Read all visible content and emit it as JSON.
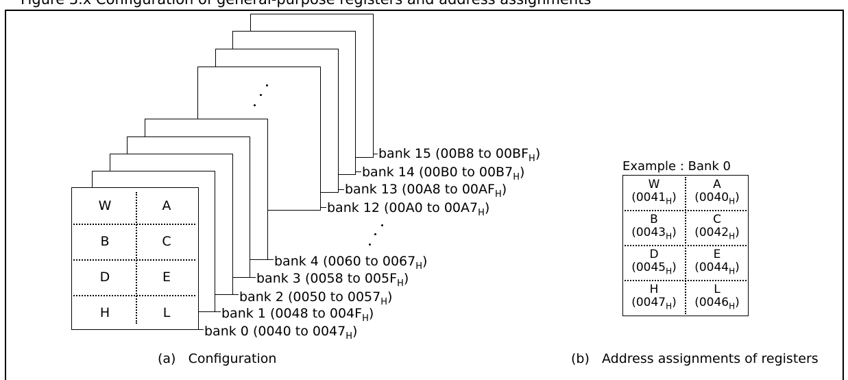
{
  "top_caption": "Figure 3.x  Configuration of general-purpose registers and address assignments",
  "banks_front": [
    {
      "label": "bank 0",
      "range": "(0040 to 0047",
      "suffix": "H",
      "close": ")"
    },
    {
      "label": "bank 1",
      "range": "(0048 to 004F",
      "suffix": "H",
      "close": ")"
    },
    {
      "label": "bank 2",
      "range": "(0050 to 0057",
      "suffix": "H",
      "close": ")"
    },
    {
      "label": "bank 3",
      "range": "(0058 to 005F",
      "suffix": "H",
      "close": ")"
    },
    {
      "label": "bank 4",
      "range": "(0060 to 0067",
      "suffix": "H",
      "close": ")"
    }
  ],
  "banks_back": [
    {
      "label": "bank 12",
      "range": "(00A0 to 00A7",
      "suffix": "H",
      "close": ")"
    },
    {
      "label": "bank 13",
      "range": "(00A8 to 00AF",
      "suffix": "H",
      "close": ")"
    },
    {
      "label": "bank 14",
      "range": "(00B0 to 00B7",
      "suffix": "H",
      "close": ")"
    },
    {
      "label": "bank 15",
      "range": "(00B8 to 00BF",
      "suffix": "H",
      "close": ")"
    }
  ],
  "registers": [
    {
      "left": "W",
      "right": "A"
    },
    {
      "left": "B",
      "right": "C"
    },
    {
      "left": "D",
      "right": "E"
    },
    {
      "left": "H",
      "right": "L"
    }
  ],
  "caption_a": "(a)   Configuration",
  "caption_b": "(b)   Address assignments of registers",
  "example": {
    "title": "Example : Bank 0",
    "rows": [
      {
        "left_name": "W",
        "left_addr": "(0041",
        "right_name": "A",
        "right_addr": "(0040"
      },
      {
        "left_name": "B",
        "left_addr": "(0043",
        "right_name": "C",
        "right_addr": "(0042"
      },
      {
        "left_name": "D",
        "left_addr": "(0045",
        "right_name": "E",
        "right_addr": "(0044"
      },
      {
        "left_name": "H",
        "left_addr": "(0047",
        "right_name": "L",
        "right_addr": "(0046"
      }
    ],
    "suffix": "H",
    "close": ")"
  }
}
